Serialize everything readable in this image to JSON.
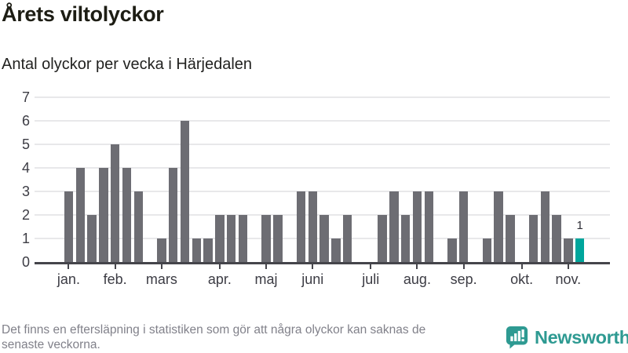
{
  "header": {
    "title": "Årets viltolyckor",
    "subtitle": "Antal olyckor per vecka i Härjedalen"
  },
  "chart_data": {
    "type": "bar",
    "title": "Årets viltolyckor",
    "subtitle": "Antal olyckor per vecka i Härjedalen",
    "x_unit": "vecka (1 stapel = 1 vecka, januari–november)",
    "values": [
      3,
      4,
      2,
      4,
      5,
      4,
      3,
      0,
      1,
      4,
      6,
      1,
      1,
      2,
      2,
      2,
      0,
      2,
      2,
      0,
      3,
      3,
      2,
      1,
      2,
      0,
      0,
      2,
      3,
      2,
      3,
      3,
      0,
      1,
      3,
      0,
      1,
      3,
      2,
      0,
      2,
      3,
      2,
      1,
      1
    ],
    "highlight": {
      "index": 44,
      "label": "1"
    },
    "month_ticks": [
      {
        "label": "jan.",
        "week_index": 0
      },
      {
        "label": "feb.",
        "week_index": 4
      },
      {
        "label": "mars",
        "week_index": 8
      },
      {
        "label": "apr.",
        "week_index": 13
      },
      {
        "label": "maj",
        "week_index": 17
      },
      {
        "label": "juni",
        "week_index": 21
      },
      {
        "label": "juli",
        "week_index": 26
      },
      {
        "label": "aug.",
        "week_index": 30
      },
      {
        "label": "sep.",
        "week_index": 34
      },
      {
        "label": "okt.",
        "week_index": 39
      },
      {
        "label": "nov.",
        "week_index": 43
      }
    ],
    "y_ticks": [
      0,
      1,
      2,
      3,
      4,
      5,
      6,
      7
    ],
    "ylim": [
      0,
      7
    ],
    "grid": true,
    "legend": "none",
    "colors": {
      "bar": "#6d6d73",
      "highlight": "#00a69c",
      "gridline": "#e8e8ea",
      "axis": "#45454b"
    }
  },
  "footer": {
    "note_line1": "Det finns en eftersläpning i statistiken som gör att några olyckor kan saknas de",
    "note_line2": "senaste veckorna.",
    "brand": "Newsworthy",
    "brand_color": "#2e9a92"
  }
}
